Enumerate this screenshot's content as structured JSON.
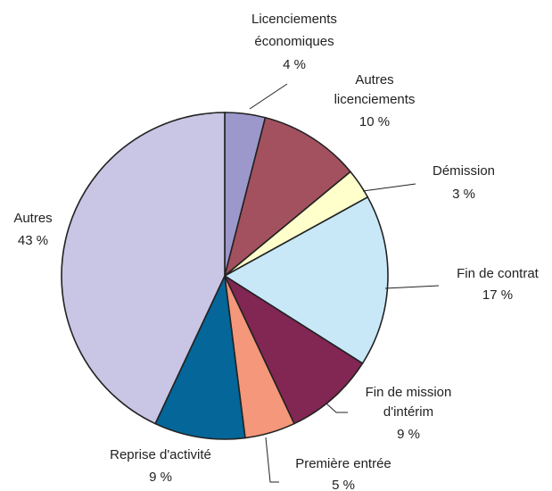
{
  "chart_data": {
    "type": "pie",
    "categories": [
      [
        "Licenciements",
        "économiques"
      ],
      [
        "Autres",
        "licenciements"
      ],
      [
        "Démission"
      ],
      [
        "Fin de contrat"
      ],
      [
        "Fin de mission",
        "d'intérim"
      ],
      [
        "Première entrée"
      ],
      [
        "Reprise d'activité"
      ],
      [
        "Autres"
      ]
    ],
    "values": [
      4,
      10,
      3,
      17,
      9,
      5,
      9,
      43
    ],
    "value_labels": [
      "4 %",
      "10 %",
      "3 %",
      "17 %",
      "9 %",
      "5 %",
      "9 %",
      "43 %"
    ],
    "colors": [
      "#9c98cc",
      "#a3515f",
      "#ffffcc",
      "#c8e8f8",
      "#822653",
      "#f4977a",
      "#046699",
      "#c9c5e5"
    ]
  }
}
